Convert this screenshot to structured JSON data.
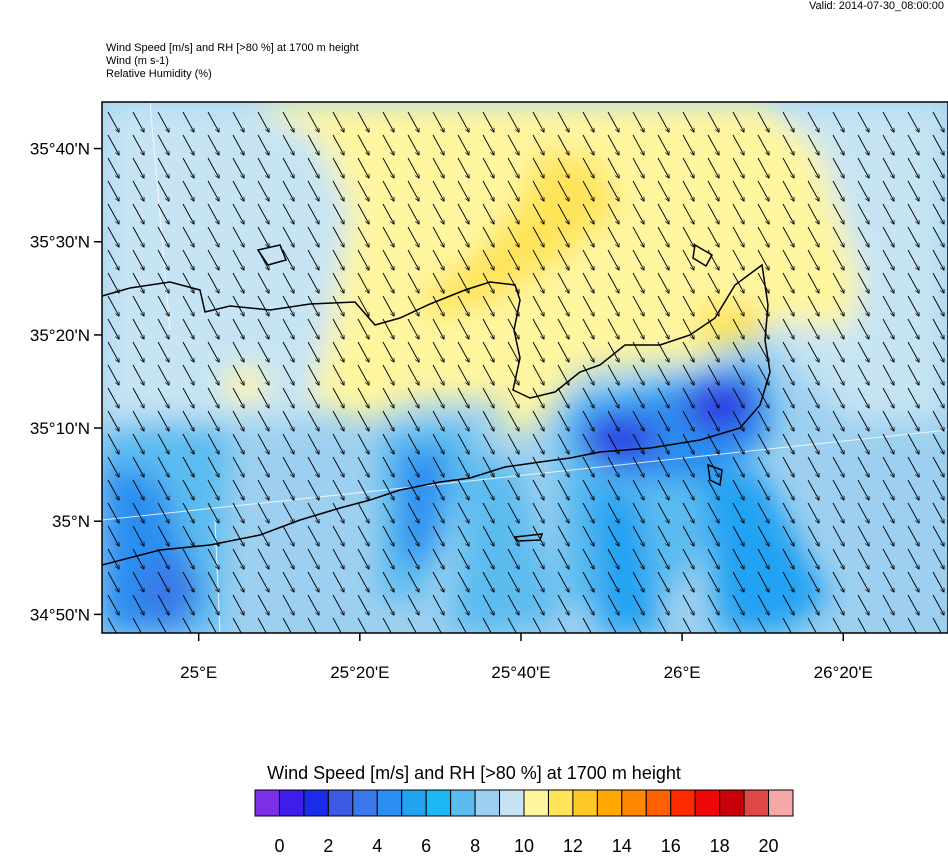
{
  "valid_text": "Valid: 2014-07-30_08:00:00",
  "titles": {
    "line1": "Wind Speed [m/s] and RH [>80 %] at 1700 m height",
    "line2": "Wind   (m s-1)",
    "line3": "Relative Humidity   (%)"
  },
  "map": {
    "lon_range": [
      24.8,
      26.55
    ],
    "lat_range": [
      34.8,
      35.75
    ],
    "lat_ticks": [
      {
        "value": 35.6667,
        "label": "35°40'N"
      },
      {
        "value": 35.5,
        "label": "35°30'N"
      },
      {
        "value": 35.3333,
        "label": "35°20'N"
      },
      {
        "value": 35.1667,
        "label": "35°10'N"
      },
      {
        "value": 35.0,
        "label": "35°N"
      },
      {
        "value": 34.8333,
        "label": "34°50'N"
      }
    ],
    "lon_ticks": [
      {
        "value": 25.0,
        "label": "25°E"
      },
      {
        "value": 25.3333,
        "label": "25°20'E"
      },
      {
        "value": 25.6667,
        "label": "25°40'E"
      },
      {
        "value": 26.0,
        "label": "26°E"
      },
      {
        "value": 26.3333,
        "label": "26°20'E"
      }
    ],
    "wind_direction": "north-westerly (arrows pointing south-east)"
  },
  "colorbar": {
    "title": "Wind Speed [m/s] and RH [>80 %] at 1700 m height",
    "colors": [
      "#7b2fe6",
      "#3c1ee8",
      "#1a2ce8",
      "#3a5ae2",
      "#3a77e8",
      "#2b8ef0",
      "#23a2f2",
      "#1cb8f4",
      "#5bbcf0",
      "#9dd0f0",
      "#c6e4f4",
      "#fff6a0",
      "#ffe45a",
      "#ffc828",
      "#ffa800",
      "#ff8800",
      "#ff6000",
      "#ff2a00",
      "#ee0808",
      "#c80008",
      "#e04848",
      "#f4a8a8"
    ],
    "tick_labels": [
      "0",
      "2",
      "4",
      "6",
      "8",
      "10",
      "12",
      "14",
      "16",
      "18",
      "20"
    ]
  }
}
